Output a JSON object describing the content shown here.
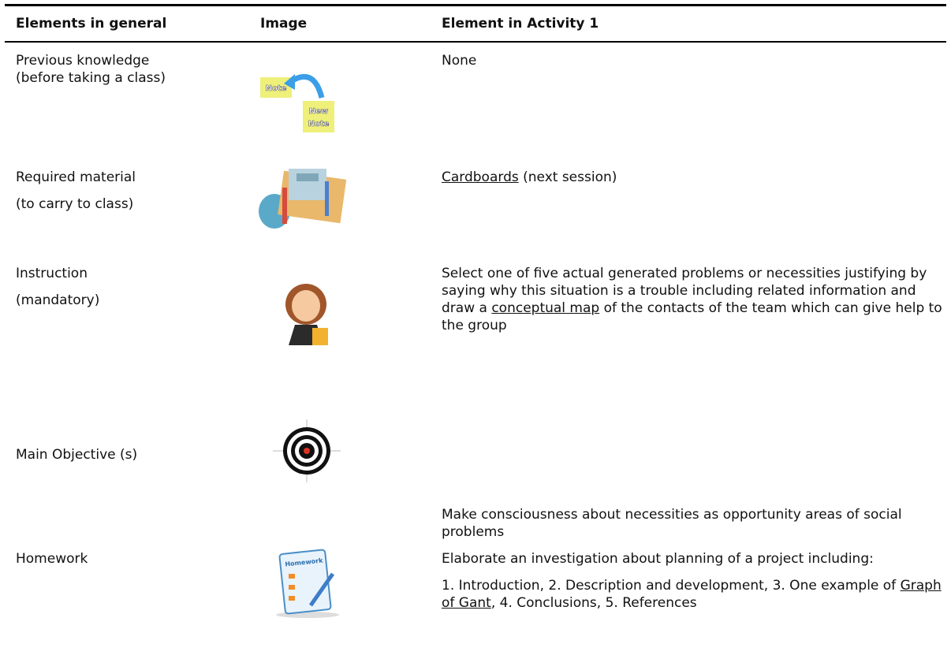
{
  "table": {
    "header": [
      "Elements in general",
      "Image",
      "Element in Activity 1"
    ],
    "rows": [
      {
        "element": [
          "Previous knowledge",
          "(before taking a class)"
        ],
        "image_text": [
          "Note",
          "New",
          "Note"
        ],
        "activity": [
          [
            {
              "text": "None"
            }
          ]
        ]
      },
      {
        "element": [
          "Required material",
          "(to carry to class)"
        ],
        "activity": [
          [
            {
              "text": "Cardboards",
              "underline": true
            },
            {
              "text": " (next session)"
            }
          ]
        ]
      },
      {
        "element": [
          "Instruction",
          "(mandatory)"
        ],
        "activity": [
          [
            {
              "text": "Select one of five actual generated problems or necessities justifying by saying why this situation is a trouble including related information and draw a "
            },
            {
              "text": "conceptual map",
              "underline": true
            },
            {
              "text": " of the contacts of the team which can give help to the group"
            }
          ]
        ]
      },
      {
        "element": [
          "Main Objective (s)"
        ],
        "activity": [
          [
            {
              "text": "Make consciousness about necessities as opportunity areas of social problems"
            }
          ]
        ]
      },
      {
        "element": [
          "Homework"
        ],
        "image_text": [
          "Homework"
        ],
        "activity": [
          [
            {
              "text": "Elaborate an investigation about planning of a project including:"
            }
          ],
          [
            {
              "text": "1. Introduction, 2. Description and development, 3. One example of "
            },
            {
              "text": "Graph of Gant",
              "underline": true
            },
            {
              "text": ", 4. Conclusions, 5. References"
            }
          ]
        ]
      }
    ]
  }
}
